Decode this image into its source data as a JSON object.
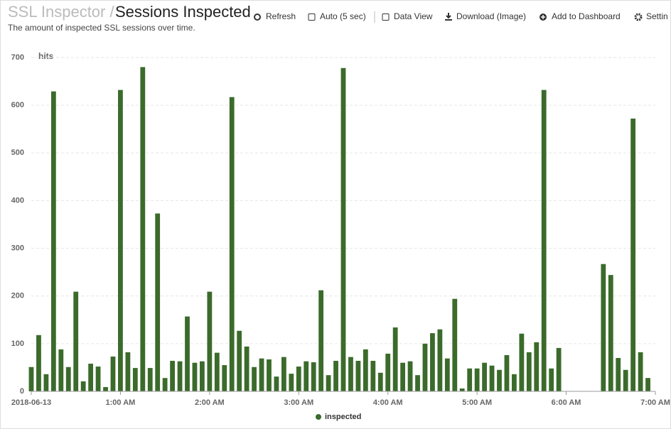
{
  "header": {
    "breadcrumb": "SSL Inspector /",
    "title": "Sessions Inspected",
    "subtitle": "The amount of inspected SSL sessions over time."
  },
  "toolbar": [
    "Refresh",
    "Auto (5 sec)",
    "Data View",
    "Download (Image)",
    "Add to Dashboard",
    "Settings"
  ],
  "chart_data": {
    "type": "bar",
    "y_label": "hits",
    "series": [
      {
        "name": "inspected",
        "color": "#3b6b2b",
        "values": [
          51,
          118,
          36,
          629,
          88,
          51,
          209,
          21,
          58,
          52,
          9,
          73,
          632,
          82,
          49,
          680,
          49,
          373,
          28,
          64,
          63,
          157,
          60,
          63,
          209,
          81,
          55,
          617,
          127,
          94,
          51,
          69,
          67,
          31,
          72,
          37,
          52,
          63,
          61,
          212,
          34,
          64,
          678,
          72,
          64,
          88,
          64,
          39,
          79,
          134,
          60,
          63,
          34,
          100,
          122,
          130,
          69,
          194,
          6,
          48,
          48,
          60,
          54,
          45,
          76,
          36,
          121,
          82,
          103,
          632,
          48,
          91,
          null,
          null,
          null,
          null,
          null,
          267,
          244,
          70,
          45,
          572,
          82,
          28
        ]
      }
    ],
    "xlim": [
      0,
      84
    ],
    "xticks": [
      {
        "value": 0,
        "label": "2018-06-13"
      },
      {
        "value": 12,
        "label": "1:00 AM"
      },
      {
        "value": 24,
        "label": "2:00 AM"
      },
      {
        "value": 36,
        "label": "3:00 AM"
      },
      {
        "value": 48,
        "label": "4:00 AM"
      },
      {
        "value": 60,
        "label": "5:00 AM"
      },
      {
        "value": 72,
        "label": "6:00 AM"
      },
      {
        "value": 84,
        "label": "7:00 AM"
      }
    ],
    "ylim": [
      0,
      700
    ],
    "yticks": [
      0,
      100,
      200,
      300,
      400,
      500,
      600,
      700
    ],
    "grid": true,
    "legend": "bottom"
  }
}
